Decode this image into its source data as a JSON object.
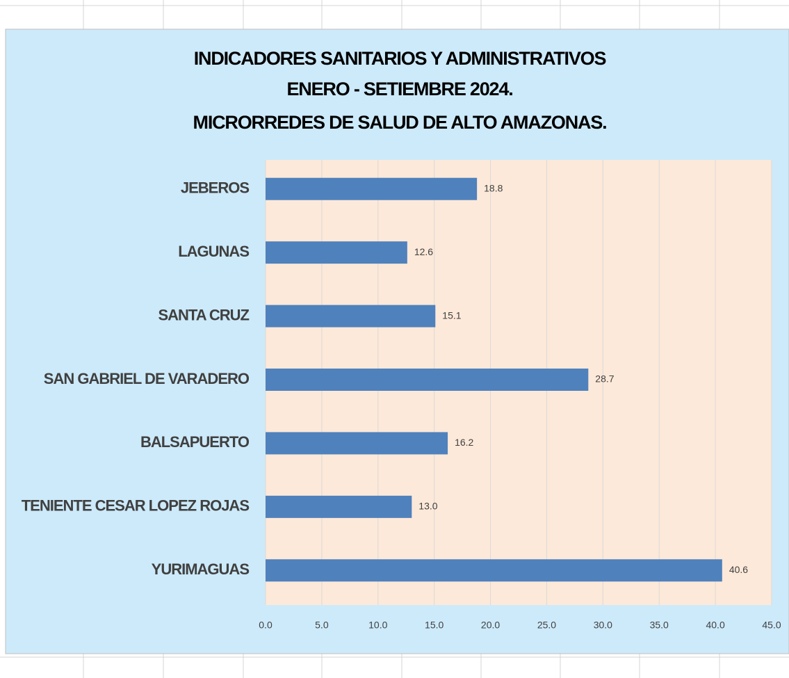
{
  "chart_data": {
    "type": "bar",
    "orientation": "horizontal",
    "title": [
      "INDICADORES SANITARIOS Y ADMINISTRATIVOS",
      "ENERO - SETIEMBRE 2024.",
      "MICRORREDES DE SALUD DE ALTO AMAZONAS."
    ],
    "categories": [
      "JEBEROS",
      "LAGUNAS",
      "SANTA CRUZ",
      "SAN GABRIEL DE VARADERO",
      "BALSAPUERTO",
      "TENIENTE CESAR LOPEZ ROJAS",
      "YURIMAGUAS"
    ],
    "values": [
      18.8,
      12.6,
      15.1,
      28.7,
      16.2,
      13.0,
      40.6
    ],
    "value_labels": [
      "18.8",
      "12.6",
      "15.1",
      "28.7",
      "16.2",
      "13.0",
      "40.6"
    ],
    "color": "#4f81bd",
    "xlim": [
      0,
      45
    ],
    "xticks": [
      {
        "value": 0,
        "label": "0.0"
      },
      {
        "value": 5,
        "label": "5.0"
      },
      {
        "value": 10,
        "label": "10.0"
      },
      {
        "value": 15,
        "label": "15.0"
      },
      {
        "value": 20,
        "label": "20.0"
      },
      {
        "value": 25,
        "label": "25.0"
      },
      {
        "value": 30,
        "label": "30.0"
      },
      {
        "value": 35,
        "label": "35.0"
      },
      {
        "value": 40,
        "label": "40.0"
      },
      {
        "value": 45,
        "label": "45.0"
      }
    ],
    "grid": true
  }
}
